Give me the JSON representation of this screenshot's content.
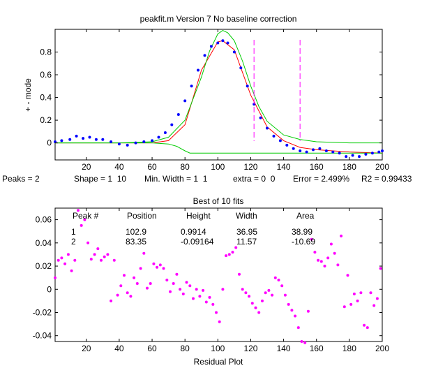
{
  "window_title": "peakfit.m Version 7    No baseline correction",
  "status_line": {
    "peaks": "Peaks = 2",
    "shape": "Shape = 1  10",
    "min_width": "Min. Width = 1  1",
    "extra": "extra = 0  0",
    "error": "Error = 2.499%",
    "r2": "R2 = 0.99433"
  },
  "fit_table": {
    "headers": [
      "Peak #",
      "Position",
      "Height",
      "Width",
      "Area"
    ],
    "rows": [
      [
        "1",
        "102.9",
        "0.9914",
        "36.95",
        "38.99"
      ],
      [
        "2",
        "83.35",
        "-0.09164",
        "11.57",
        "-10.69"
      ]
    ]
  },
  "colors": {
    "data": "#0000ff",
    "model": "#ff0000",
    "components": "#00cc00",
    "markers": "#ff00ff",
    "residuals": "#ff00ff"
  },
  "chart_data": [
    {
      "type": "line",
      "title": "peakfit.m Version 7    No baseline correction",
      "xlabel": "",
      "ylabel": "+ - mode",
      "xlim": [
        1,
        200
      ],
      "ylim": [
        -0.15,
        1.0
      ],
      "xticks": [
        20,
        40,
        60,
        80,
        100,
        120,
        140,
        160,
        180,
        200
      ],
      "yticks": [
        0,
        0.2,
        0.4,
        0.6,
        0.8
      ],
      "series": [
        {
          "name": "data",
          "style": "points",
          "color": "#0000ff",
          "x": [
            1,
            5,
            10,
            14,
            18,
            22,
            26,
            30,
            35,
            40,
            45,
            50,
            55,
            60,
            64,
            68,
            72,
            76,
            80,
            84,
            88,
            92,
            96,
            100,
            103,
            106,
            110,
            114,
            118,
            122,
            126,
            130,
            134,
            138,
            142,
            146,
            150,
            154,
            158,
            162,
            166,
            170,
            174,
            178,
            182,
            186,
            190,
            194,
            198,
            200
          ],
          "y": [
            0.01,
            0.02,
            0.03,
            0.06,
            0.04,
            0.05,
            0.03,
            0.03,
            0.01,
            -0.01,
            -0.02,
            0.0,
            0.01,
            0.02,
            0.05,
            0.09,
            0.16,
            0.25,
            0.37,
            0.5,
            0.64,
            0.77,
            0.85,
            0.88,
            0.9,
            0.88,
            0.8,
            0.66,
            0.5,
            0.34,
            0.22,
            0.13,
            0.06,
            0.02,
            -0.02,
            -0.05,
            -0.07,
            -0.08,
            -0.06,
            -0.05,
            -0.07,
            -0.08,
            -0.09,
            -0.12,
            -0.11,
            -0.12,
            -0.1,
            -0.09,
            -0.08,
            -0.07
          ]
        },
        {
          "name": "model",
          "style": "line",
          "color": "#ff0000",
          "x": [
            1,
            40,
            60,
            70,
            80,
            90,
            100,
            103,
            110,
            120,
            130,
            140,
            150,
            160,
            180,
            200
          ],
          "y": [
            0.0,
            0.0,
            0.0,
            0.02,
            0.16,
            0.64,
            0.89,
            0.9,
            0.82,
            0.42,
            0.14,
            0.02,
            -0.04,
            -0.06,
            -0.08,
            -0.09
          ]
        },
        {
          "name": "component 1",
          "style": "line",
          "color": "#00cc00",
          "x": [
            1,
            40,
            60,
            70,
            80,
            90,
            95,
            100,
            103,
            106,
            110,
            115,
            120,
            125,
            130,
            140,
            150,
            160,
            180,
            200
          ],
          "y": [
            0.0,
            0.0,
            0.01,
            0.05,
            0.2,
            0.58,
            0.81,
            0.96,
            0.99,
            0.97,
            0.9,
            0.72,
            0.5,
            0.32,
            0.19,
            0.07,
            0.03,
            0.01,
            0.0,
            0.0
          ]
        },
        {
          "name": "component 2",
          "style": "line",
          "color": "#00cc00",
          "x": [
            1,
            60,
            70,
            75,
            80,
            83,
            86,
            90,
            95,
            100,
            105,
            120,
            150,
            200
          ],
          "y": [
            0.0,
            0.0,
            -0.01,
            -0.03,
            -0.07,
            -0.09,
            -0.09,
            -0.09,
            -0.09,
            -0.09,
            -0.09,
            -0.09,
            -0.09,
            -0.09
          ]
        }
      ],
      "markers": {
        "type": "vline",
        "style": "dashed",
        "x": [
          122,
          150
        ],
        "color": "#ff00ff"
      }
    },
    {
      "type": "scatter",
      "title": "Best of 10 fits",
      "xlabel": "Residual Plot",
      "ylabel": "",
      "xlim": [
        1,
        200
      ],
      "ylim": [
        -0.045,
        0.07
      ],
      "xticks": [
        20,
        40,
        60,
        80,
        100,
        120,
        140,
        160,
        180,
        200
      ],
      "yticks": [
        -0.04,
        -0.02,
        0,
        0.02,
        0.04,
        0.06
      ],
      "series": [
        {
          "name": "residuals",
          "color": "#ff00ff",
          "x": [
            1,
            3,
            5,
            7,
            9,
            11,
            13,
            15,
            17,
            19,
            21,
            23,
            25,
            27,
            29,
            31,
            33,
            35,
            37,
            39,
            41,
            43,
            45,
            47,
            49,
            51,
            53,
            55,
            57,
            59,
            61,
            63,
            65,
            67,
            69,
            71,
            73,
            75,
            77,
            79,
            81,
            83,
            85,
            87,
            89,
            91,
            93,
            95,
            97,
            99,
            101,
            103,
            105,
            107,
            109,
            111,
            113,
            115,
            117,
            119,
            121,
            123,
            125,
            127,
            129,
            131,
            133,
            135,
            137,
            139,
            141,
            143,
            145,
            147,
            149,
            151,
            153,
            155,
            157,
            159,
            161,
            163,
            165,
            167,
            169,
            171,
            173,
            175,
            177,
            179,
            181,
            183,
            185,
            187,
            189,
            191,
            193,
            195,
            197,
            199
          ],
          "y": [
            0.01,
            0.025,
            0.027,
            0.022,
            0.03,
            0.016,
            0.025,
            0.068,
            0.055,
            0.06,
            0.04,
            0.026,
            0.03,
            0.035,
            0.025,
            0.028,
            0.03,
            -0.01,
            0.025,
            -0.005,
            0.003,
            0.012,
            -0.003,
            -0.006,
            0.01,
            0.005,
            0.018,
            0.031,
            0.001,
            0.005,
            0.022,
            0.019,
            0.021,
            0.018,
            0.008,
            -0.002,
            0.005,
            0.013,
            0.0,
            -0.004,
            0.006,
            0.003,
            -0.008,
            0.0,
            -0.006,
            -0.001,
            -0.011,
            -0.007,
            -0.013,
            -0.02,
            -0.028,
            0.0,
            0.029,
            0.03,
            0.032,
            0.036,
            0.013,
            0.0,
            -0.003,
            -0.006,
            -0.012,
            -0.016,
            -0.02,
            -0.01,
            -0.003,
            -0.001,
            -0.005,
            0.01,
            0.008,
            0.003,
            -0.005,
            -0.013,
            -0.018,
            -0.023,
            -0.033,
            -0.045,
            -0.046,
            -0.019,
            0.043,
            0.032,
            0.025,
            0.024,
            0.02,
            0.027,
            0.039,
            0.031,
            0.021,
            0.046,
            -0.015,
            0.012,
            -0.013,
            -0.004,
            -0.01,
            -0.003,
            -0.031,
            -0.033,
            -0.003,
            -0.014,
            -0.008,
            0.018
          ]
        }
      ]
    }
  ]
}
